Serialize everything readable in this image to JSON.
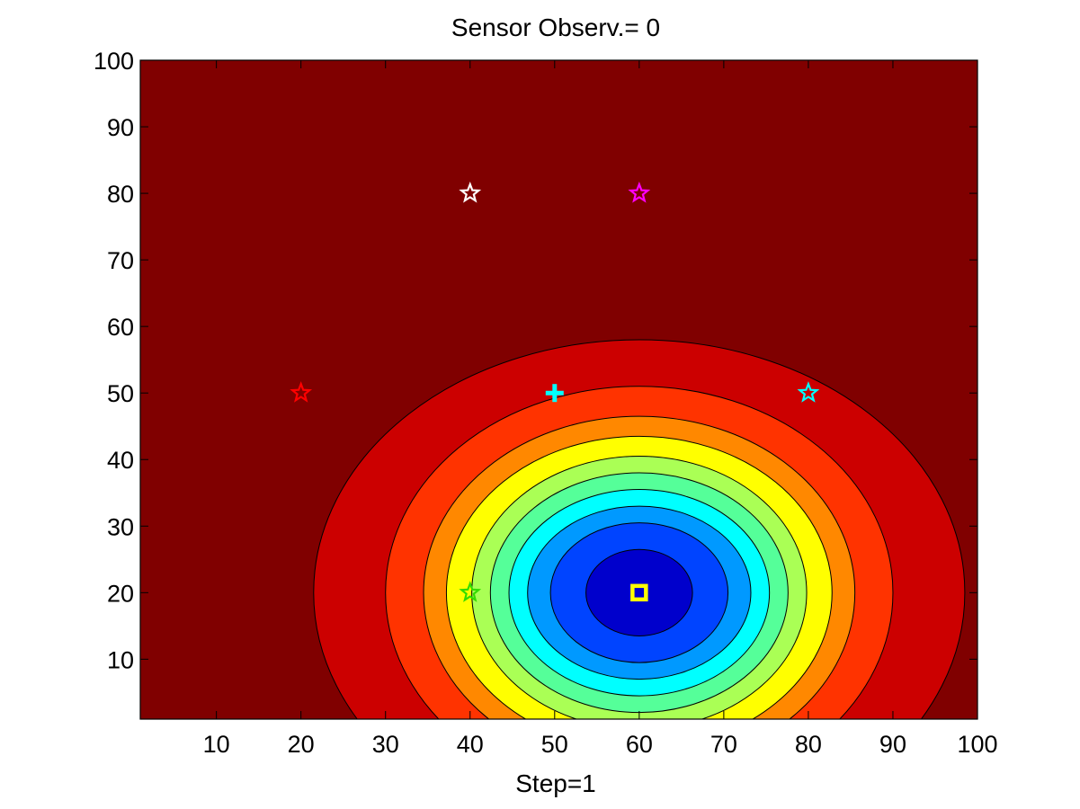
{
  "chart_data": {
    "type": "contourf",
    "title": "Sensor  Observ.= 0",
    "xlabel": "Step=1",
    "ylabel": "",
    "xlim": [
      1,
      100
    ],
    "ylim": [
      1,
      100
    ],
    "xticks": [
      10,
      20,
      30,
      40,
      50,
      60,
      70,
      80,
      90,
      100
    ],
    "yticks": [
      10,
      20,
      30,
      40,
      50,
      60,
      70,
      80,
      90,
      100
    ],
    "grid": false,
    "background_color": "#800000",
    "field": {
      "shape": "gaussian",
      "center": [
        60,
        20
      ],
      "contour_levels": [
        {
          "rx": 38.5,
          "ry": 38,
          "color": "#cc0000"
        },
        {
          "rx": 30,
          "ry": 31,
          "color": "#ff3300"
        },
        {
          "rx": 25.5,
          "ry": 26.5,
          "color": "#ff8800"
        },
        {
          "rx": 22.8,
          "ry": 23.5,
          "color": "#ffff00"
        },
        {
          "rx": 19.8,
          "ry": 20.5,
          "color": "#aaff55"
        },
        {
          "rx": 17.6,
          "ry": 18,
          "color": "#55ff99"
        },
        {
          "rx": 15.4,
          "ry": 15.5,
          "color": "#00ffff"
        },
        {
          "rx": 13.2,
          "ry": 13,
          "color": "#0099ff"
        },
        {
          "rx": 10.5,
          "ry": 10.5,
          "color": "#0044ff"
        },
        {
          "rx": 6.3,
          "ry": 6.5,
          "color": "#0000cc"
        },
        {
          "rx": 0,
          "ry": 0,
          "color": "#000088"
        }
      ]
    },
    "markers": [
      {
        "name": "sensor-white",
        "type": "star",
        "x": 40,
        "y": 80,
        "color": "#ffffff"
      },
      {
        "name": "sensor-magenta",
        "type": "star",
        "x": 60,
        "y": 80,
        "color": "#ff00ff"
      },
      {
        "name": "sensor-red",
        "type": "star",
        "x": 20,
        "y": 50,
        "color": "#ff0000"
      },
      {
        "name": "sensor-cyan",
        "type": "star",
        "x": 80,
        "y": 50,
        "color": "#00ffff"
      },
      {
        "name": "sensor-green",
        "type": "star",
        "x": 40,
        "y": 20,
        "color": "#33dd00"
      },
      {
        "name": "estimate-cross",
        "type": "plus",
        "x": 50,
        "y": 50,
        "color": "#00ffff"
      },
      {
        "name": "target-square",
        "type": "square",
        "x": 60,
        "y": 20,
        "color": "#ffff00"
      }
    ]
  }
}
